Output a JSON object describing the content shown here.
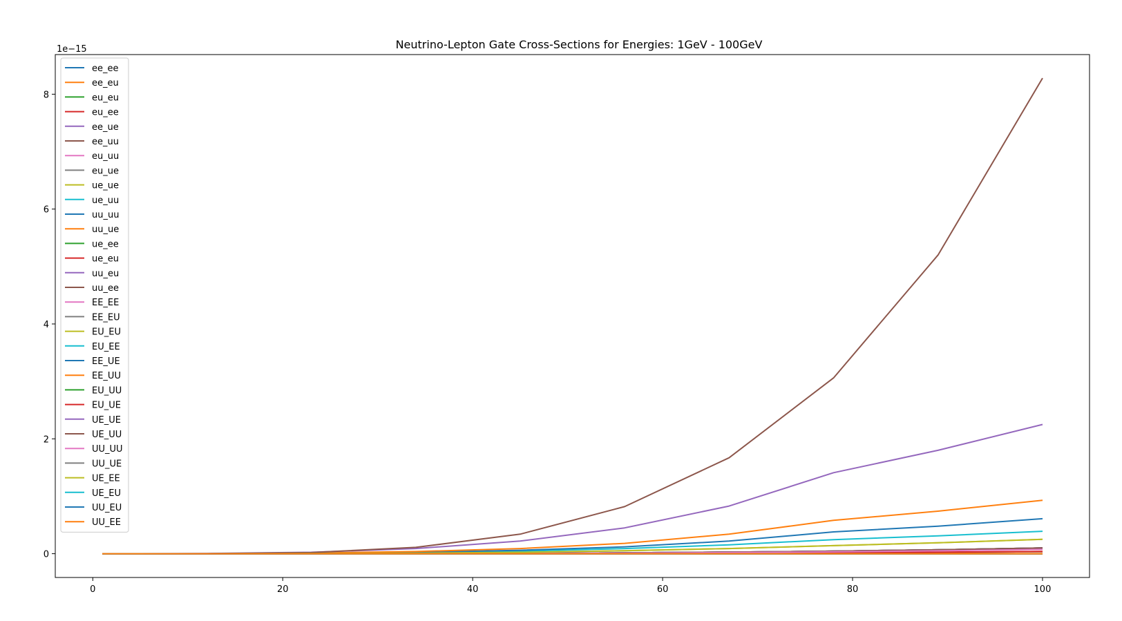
{
  "chart_data": {
    "type": "line",
    "title": "Neutrino-Lepton Gate Cross-Sections for Energies: 1GeV - 100GeV",
    "xlabel": "",
    "ylabel": "",
    "y_offset_label": "1e−15",
    "y_scale_multiplier": 1e-15,
    "xlim": [
      -3.95,
      104.95
    ],
    "ylim": [
      -0.414,
      8.69
    ],
    "x_ticks": [
      0,
      20,
      40,
      60,
      80,
      100
    ],
    "y_ticks": [
      0,
      2,
      4,
      6,
      8
    ],
    "grid": false,
    "legend_position": "upper-left",
    "x": [
      1,
      12,
      23,
      34,
      45,
      56,
      67,
      78,
      89,
      100
    ],
    "series": [
      {
        "name": "ee_ee",
        "color": "#1f77b4",
        "values": [
          0,
          0,
          0.001,
          0.003,
          0.007,
          0.015,
          0.027,
          0.044,
          0.068,
          0.1
        ]
      },
      {
        "name": "ee_eu",
        "color": "#ff7f0e",
        "values": [
          0,
          0,
          0.001,
          0.003,
          0.007,
          0.015,
          0.027,
          0.044,
          0.068,
          0.1
        ]
      },
      {
        "name": "eu_eu",
        "color": "#2ca02c",
        "values": [
          0,
          0,
          0,
          0,
          0,
          0,
          0,
          0,
          0,
          0
        ]
      },
      {
        "name": "eu_ee",
        "color": "#d62728",
        "values": [
          0,
          0,
          0,
          0.001,
          0.003,
          0.006,
          0.011,
          0.017,
          0.026,
          0.038
        ]
      },
      {
        "name": "ee_ue",
        "color": "#9467bd",
        "values": [
          0,
          0,
          0.001,
          0.003,
          0.007,
          0.015,
          0.027,
          0.044,
          0.068,
          0.1
        ]
      },
      {
        "name": "ee_uu",
        "color": "#8c564b",
        "values": [
          0,
          0,
          0.001,
          0.003,
          0.007,
          0.015,
          0.027,
          0.044,
          0.068,
          0.1
        ]
      },
      {
        "name": "eu_uu",
        "color": "#e377c2",
        "values": [
          0,
          0,
          0,
          0.001,
          0.002,
          0.005,
          0.009,
          0.015,
          0.023,
          0.034
        ]
      },
      {
        "name": "eu_ue",
        "color": "#7f7f7f",
        "values": [
          0,
          0,
          0,
          0,
          0,
          0,
          0,
          0,
          0,
          0
        ]
      },
      {
        "name": "ue_ue",
        "color": "#bcbd22",
        "values": [
          0,
          0,
          0,
          0,
          0,
          0,
          0,
          0,
          0,
          0
        ]
      },
      {
        "name": "ue_uu",
        "color": "#17becf",
        "values": [
          0,
          0,
          0,
          0.001,
          0.002,
          0.005,
          0.009,
          0.015,
          0.023,
          0.034
        ]
      },
      {
        "name": "uu_uu",
        "color": "#1f77b4",
        "values": [
          0,
          0,
          0.001,
          0.003,
          0.007,
          0.015,
          0.027,
          0.044,
          0.068,
          0.1
        ]
      },
      {
        "name": "uu_ue",
        "color": "#ff7f0e",
        "values": [
          0,
          0,
          0,
          0.001,
          0.002,
          0.005,
          0.009,
          0.015,
          0.023,
          0.034
        ]
      },
      {
        "name": "ue_ee",
        "color": "#2ca02c",
        "values": [
          0,
          0,
          0,
          0,
          0,
          0,
          0,
          0,
          0,
          0
        ]
      },
      {
        "name": "ue_eu",
        "color": "#d62728",
        "values": [
          0,
          0,
          0,
          0.001,
          0.003,
          0.006,
          0.011,
          0.017,
          0.026,
          0.038
        ]
      },
      {
        "name": "uu_eu",
        "color": "#9467bd",
        "values": [
          0,
          0,
          0.001,
          0.003,
          0.007,
          0.015,
          0.027,
          0.044,
          0.068,
          0.1
        ]
      },
      {
        "name": "uu_ee",
        "color": "#8c564b",
        "values": [
          0,
          0,
          0.001,
          0.003,
          0.007,
          0.015,
          0.027,
          0.044,
          0.068,
          0.1
        ]
      },
      {
        "name": "EE_EE",
        "color": "#e377c2",
        "values": [
          0,
          0,
          0.001,
          0.002,
          0.005,
          0.011,
          0.02,
          0.032,
          0.05,
          0.074
        ]
      },
      {
        "name": "EE_EU",
        "color": "#7f7f7f",
        "values": [
          0,
          0,
          0,
          0,
          0,
          0,
          0,
          0,
          0,
          0
        ]
      },
      {
        "name": "EU_EU",
        "color": "#bcbd22",
        "values": [
          0,
          0.001,
          0.003,
          0.01,
          0.025,
          0.052,
          0.09,
          0.14,
          0.19,
          0.25
        ]
      },
      {
        "name": "EU_EE",
        "color": "#17becf",
        "values": [
          0,
          0.001,
          0.006,
          0.018,
          0.045,
          0.09,
          0.155,
          0.245,
          0.31,
          0.39
        ]
      },
      {
        "name": "EE_UE",
        "color": "#1f77b4",
        "values": [
          0,
          0.001,
          0.008,
          0.025,
          0.06,
          0.12,
          0.22,
          0.38,
          0.48,
          0.61
        ]
      },
      {
        "name": "EE_UU",
        "color": "#ff7f0e",
        "values": [
          0,
          0.002,
          0.012,
          0.038,
          0.09,
          0.18,
          0.34,
          0.58,
          0.74,
          0.93
        ]
      },
      {
        "name": "EU_UU",
        "color": "#2ca02c",
        "values": [
          0,
          0,
          0,
          0,
          0,
          0,
          0,
          0,
          0,
          0
        ]
      },
      {
        "name": "EU_UE",
        "color": "#d62728",
        "values": [
          0,
          0,
          0,
          0,
          0,
          0,
          0,
          0,
          0,
          0
        ]
      },
      {
        "name": "UE_UE",
        "color": "#9467bd",
        "values": [
          0,
          0.004,
          0.025,
          0.09,
          0.22,
          0.45,
          0.83,
          1.41,
          1.8,
          2.25
        ]
      },
      {
        "name": "UE_UU",
        "color": "#8c564b",
        "values": [
          0,
          0.001,
          0.02,
          0.11,
          0.34,
          0.82,
          1.67,
          3.06,
          5.2,
          8.28
        ]
      },
      {
        "name": "UU_UU",
        "color": "#e377c2",
        "values": [
          0,
          0,
          0,
          0,
          0,
          0,
          0,
          0,
          0,
          0
        ]
      },
      {
        "name": "UU_UE",
        "color": "#7f7f7f",
        "values": [
          0,
          0,
          0,
          0,
          0,
          0,
          0,
          0,
          0,
          0
        ]
      },
      {
        "name": "UE_EE",
        "color": "#bcbd22",
        "values": [
          0,
          0.001,
          0.003,
          0.01,
          0.025,
          0.052,
          0.09,
          0.14,
          0.19,
          0.25
        ]
      },
      {
        "name": "UE_EU",
        "color": "#17becf",
        "values": [
          0,
          0,
          0,
          0,
          0,
          0,
          0,
          0,
          0,
          0
        ]
      },
      {
        "name": "UU_EU",
        "color": "#1f77b4",
        "values": [
          0,
          0,
          0,
          0,
          0,
          0,
          0,
          0,
          0,
          0
        ]
      },
      {
        "name": "UU_EE",
        "color": "#ff7f0e",
        "values": [
          0,
          0,
          0,
          0,
          0,
          0,
          0,
          0,
          0,
          0
        ]
      }
    ]
  }
}
